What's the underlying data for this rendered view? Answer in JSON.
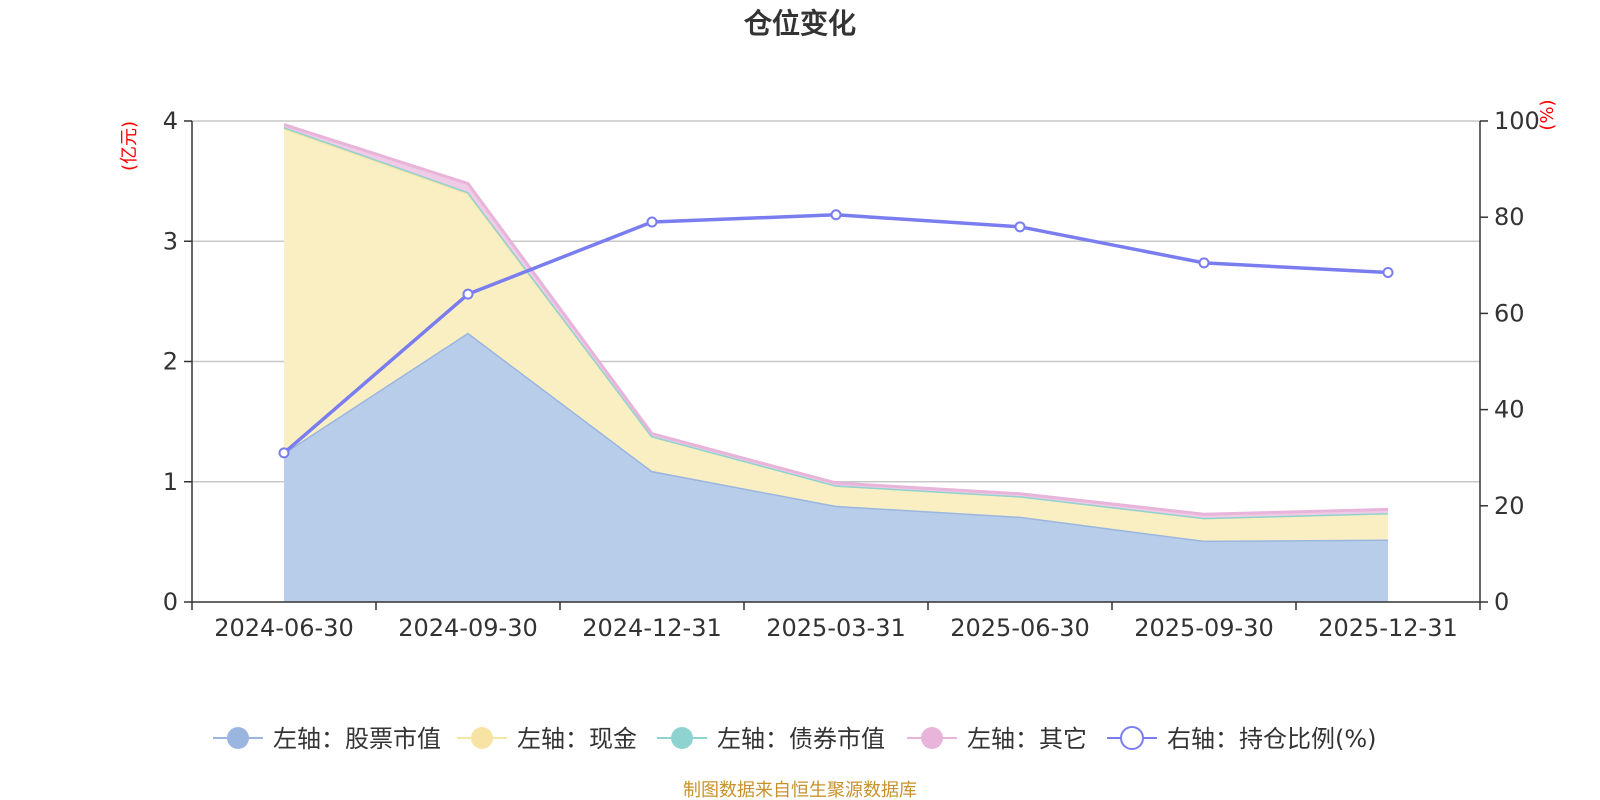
{
  "chart_data": {
    "type": "area",
    "title": "仓位变化",
    "categories": [
      "2024-06-30",
      "2024-09-30",
      "2024-12-31",
      "2025-03-31",
      "2025-06-30",
      "2025-09-30",
      "2025-12-31"
    ],
    "left_axis": {
      "unit": "(亿元)",
      "ylim": [
        0,
        4
      ],
      "ticks": [
        "0",
        "1",
        "2",
        "3",
        "4"
      ]
    },
    "right_axis": {
      "unit": "(%)",
      "ylim": [
        0,
        100
      ],
      "ticks": [
        "0",
        "20",
        "40",
        "60",
        "80",
        "100"
      ]
    },
    "series": [
      {
        "name": "左轴：股票市值",
        "axis": "left",
        "stack": true,
        "values": [
          1.24,
          2.24,
          1.09,
          0.8,
          0.71,
          0.51,
          0.52
        ],
        "color": "#9ab6e0",
        "fill": "#b8cdea"
      },
      {
        "name": "左轴：现金",
        "axis": "left",
        "stack": true,
        "values": [
          2.7,
          1.16,
          0.29,
          0.17,
          0.17,
          0.19,
          0.22
        ],
        "color": "#f7e4a4",
        "fill": "#faefc3"
      },
      {
        "name": "左轴：债券市值",
        "axis": "left",
        "stack": true,
        "values": [
          0.01,
          0.01,
          0.0,
          0.0,
          0.0,
          0.0,
          0.0
        ],
        "color": "#8fd3d0",
        "fill": "#b4e2e0"
      },
      {
        "name": "左轴：其它",
        "axis": "left",
        "stack": true,
        "values": [
          0.02,
          0.07,
          0.02,
          0.02,
          0.02,
          0.03,
          0.03
        ],
        "color": "#e8b4da",
        "fill": "#efcbe5"
      },
      {
        "name": "右轴：持仓比例(%)",
        "axis": "right",
        "type": "line",
        "values": [
          31,
          64,
          79,
          80.5,
          78,
          70.5,
          68.5
        ],
        "color": "#7a7df0"
      }
    ],
    "source": "制图数据来自恒生聚源数据库"
  }
}
